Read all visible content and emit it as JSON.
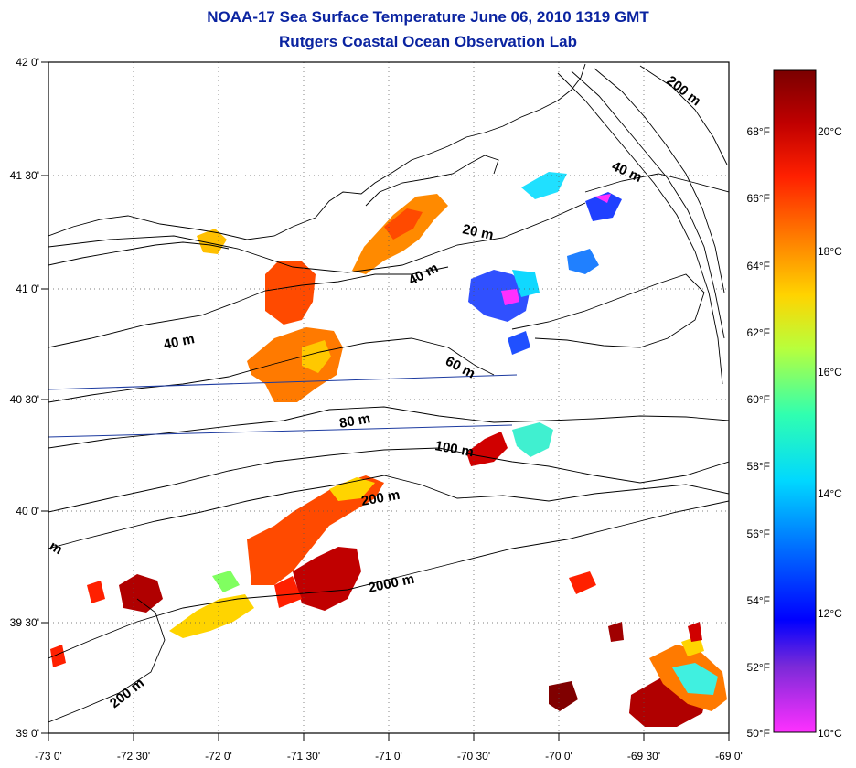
{
  "title_line1": "NOAA-17 Sea Surface Temperature June 06, 2010 1319 GMT",
  "title_line2": "Rutgers Coastal Ocean Observation Lab",
  "lon_ticks": [
    "-73 0'",
    "-72 30'",
    "-72 0'",
    "-71 30'",
    "-71 0'",
    "-70 30'",
    "-70 0'",
    "-69 30'",
    "-69 0'"
  ],
  "lat_ticks": [
    "42 0'",
    "41 30'",
    "41 0'",
    "40 30'",
    "40 0'",
    "39 30'",
    "39 0'"
  ],
  "contour_labels": [
    "200 m",
    "40 m",
    "20 m",
    "40 m",
    "40 m",
    "60 m",
    "80 m",
    "100 m",
    "200 m",
    "2000 m",
    "200 m",
    "m"
  ],
  "colorbar": {
    "fahrenheit": [
      "68°F",
      "66°F",
      "64°F",
      "62°F",
      "60°F",
      "58°F",
      "56°F",
      "54°F",
      "52°F",
      "50°F"
    ],
    "celsius": [
      "20°C",
      "18°C",
      "16°C",
      "14°C",
      "12°C",
      "10°C"
    ],
    "colors": [
      "#7a0000",
      "#c00000",
      "#ff2000",
      "#ff7a00",
      "#ffd400",
      "#b8ff3c",
      "#30ffb0",
      "#00d8ff",
      "#0070ff",
      "#0000ff",
      "#7a2ad8",
      "#ff30ff"
    ]
  }
}
